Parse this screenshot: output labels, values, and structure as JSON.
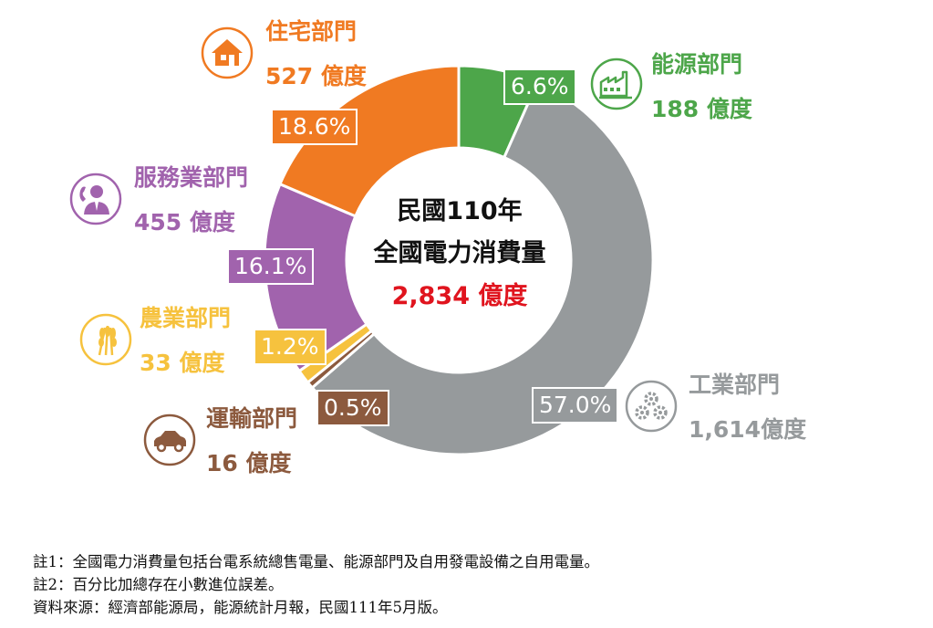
{
  "chart_data": {
    "type": "pie",
    "title": "民國110年",
    "subtitle": "全國電力消費量",
    "total_label": "2,834 億度",
    "unit": "億度",
    "slices": [
      {
        "name": "能源部門",
        "value": 188,
        "value_label": "188 億度",
        "percent_label": "6.6%",
        "color": "#4da64a"
      },
      {
        "name": "工業部門",
        "value": 1614,
        "value_label": "1,614億度",
        "percent_label": "57.0%",
        "color": "#969a9c"
      },
      {
        "name": "運輸部門",
        "value": 16,
        "value_label": "16 億度",
        "percent_label": "0.5%",
        "color": "#8c5a3e"
      },
      {
        "name": "農業部門",
        "value": 33,
        "value_label": "33 億度",
        "percent_label": "1.2%",
        "color": "#f6c23e"
      },
      {
        "name": "服務業部門",
        "value": 455,
        "value_label": "455 億度",
        "percent_label": "16.1%",
        "color": "#a163ad"
      },
      {
        "name": "住宅部門",
        "value": 527,
        "value_label": "527 億度",
        "percent_label": "18.6%",
        "color": "#f07a22"
      }
    ]
  },
  "icons": {
    "energy": "factory-icon",
    "industry": "gears-icon",
    "transport": "car-icon",
    "agriculture": "wheat-icon",
    "service": "business-person-icon",
    "residential": "house-icon"
  },
  "notes": [
    "註1：全國電力消費量包括台電系統總售電量、能源部門及自用發電設備之自用電量。",
    "註2：百分比加總存在小數進位誤差。",
    "資料來源：經濟部能源局，能源統計月報，民國111年5月版。"
  ]
}
